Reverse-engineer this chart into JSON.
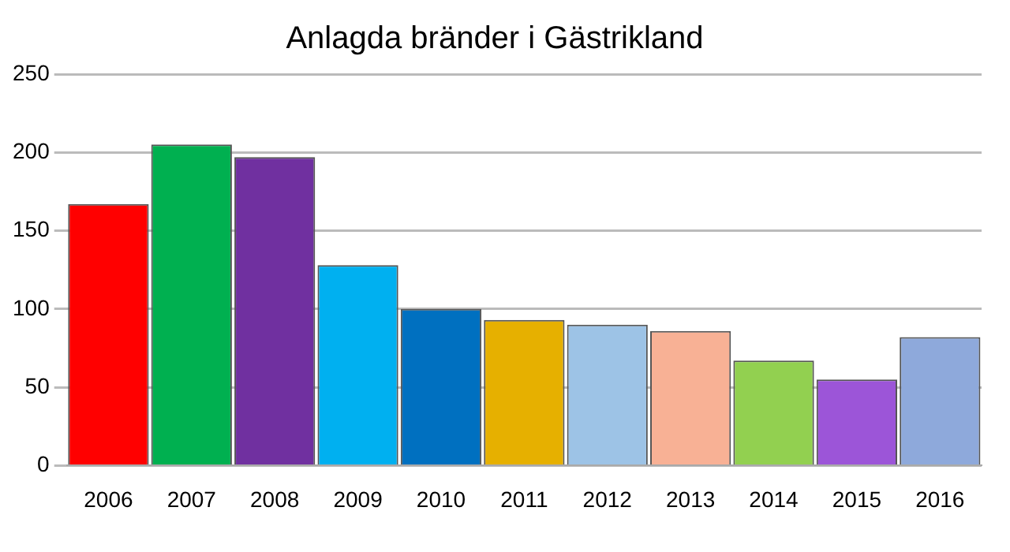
{
  "chart_data": {
    "type": "bar",
    "title": "Anlagda bränder i Gästrikland",
    "categories": [
      "2006",
      "2007",
      "2008",
      "2009",
      "2010",
      "2011",
      "2012",
      "2013",
      "2014",
      "2015",
      "2016"
    ],
    "values": [
      167,
      205,
      197,
      128,
      100,
      93,
      90,
      86,
      67,
      55,
      82
    ],
    "colors": [
      "#ff0000",
      "#00b050",
      "#7030a0",
      "#00b0f0",
      "#0070c0",
      "#e6b000",
      "#9dc3e6",
      "#f8b195",
      "#92d050",
      "#9c55d8",
      "#8ea9db"
    ],
    "ylim": [
      0,
      250
    ],
    "yticks": [
      0,
      50,
      100,
      150,
      200,
      250
    ],
    "grid": "y",
    "legend": false
  }
}
